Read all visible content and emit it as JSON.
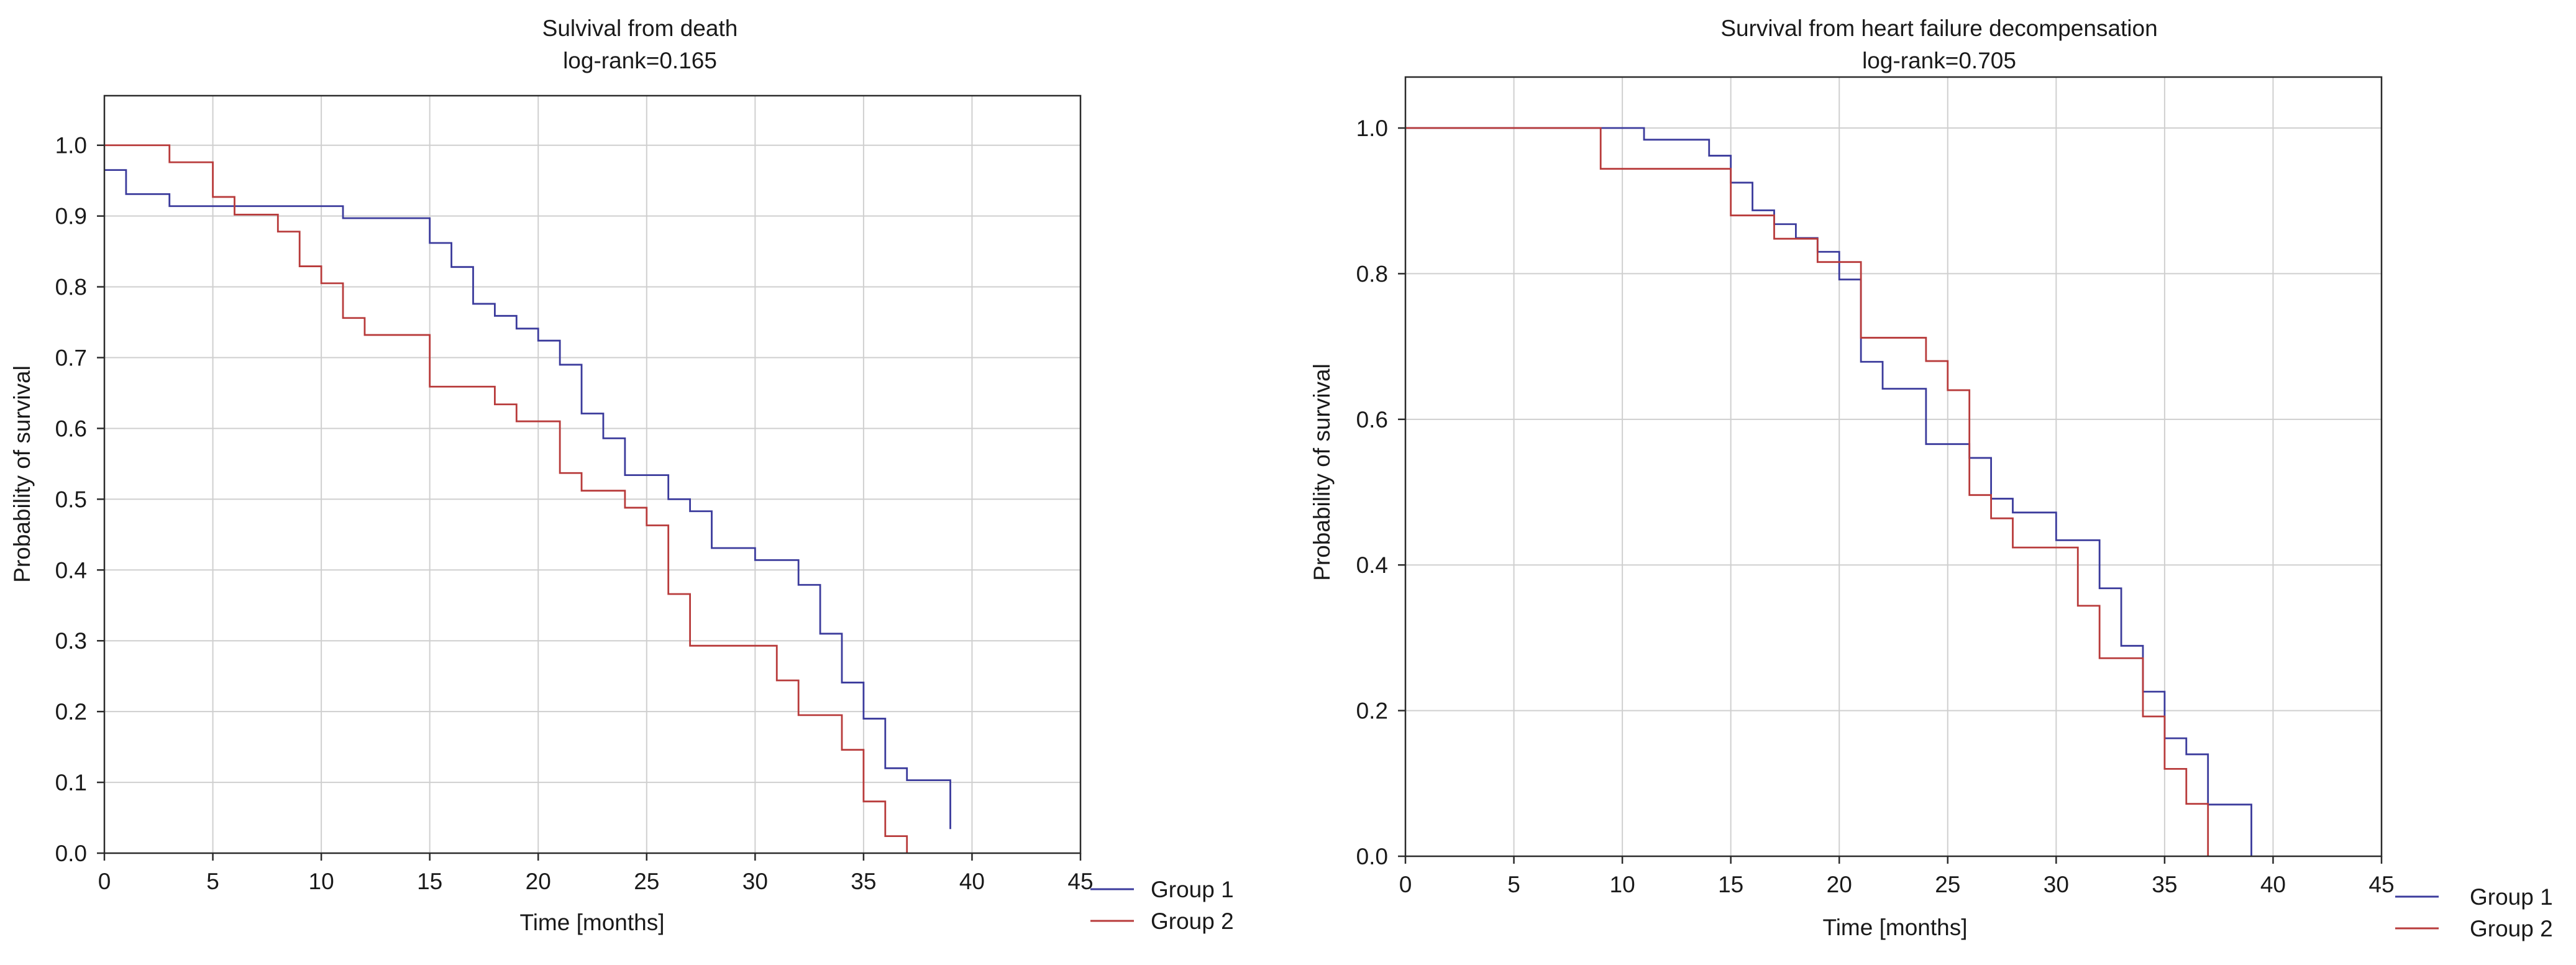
{
  "chart_data": [
    {
      "type": "line",
      "step": true,
      "title": "Sulvival from death",
      "subtitle": "log-rank=0.165",
      "xlabel": "Time [months]",
      "ylabel": "Probability of survival",
      "xlim": [
        0,
        45
      ],
      "ylim": [
        0,
        1.07
      ],
      "xticks": [
        0,
        5,
        10,
        15,
        20,
        25,
        30,
        35,
        40,
        45
      ],
      "xtick_labels": [
        "0",
        "5",
        "10",
        "15",
        "20",
        "25",
        "30",
        "35",
        "40",
        "45"
      ],
      "yticks": [
        0,
        0.1,
        0.2,
        0.3,
        0.4,
        0.5,
        0.6,
        0.7,
        0.8,
        0.9,
        1.0
      ],
      "ytick_labels": [
        "0.0",
        "0.1",
        "0.2",
        "0.3",
        "0.4",
        "0.5",
        "0.6",
        "0.7",
        "0.8",
        "0.9",
        "1.0"
      ],
      "grid": true,
      "legend_position": "bottom-right-outside",
      "series": [
        {
          "name": "Group 1",
          "color": "#3b3b9c",
          "x": [
            0,
            1,
            3,
            11,
            14,
            15,
            16,
            17,
            18,
            19,
            20,
            21,
            22,
            23,
            24,
            26,
            27,
            28,
            30,
            32,
            33,
            34,
            35,
            36,
            37,
            39
          ],
          "y": [
            0.965,
            0.931,
            0.914,
            0.897,
            0.897,
            0.862,
            0.828,
            0.776,
            0.759,
            0.741,
            0.724,
            0.69,
            0.621,
            0.586,
            0.534,
            0.5,
            0.483,
            0.431,
            0.414,
            0.379,
            0.31,
            0.241,
            0.19,
            0.12,
            0.103,
            0.034
          ]
        },
        {
          "name": "Group 2",
          "color": "#b83b3b",
          "x": [
            0,
            3,
            5,
            6,
            8,
            9,
            10,
            11,
            12,
            15,
            18,
            19,
            21,
            22,
            24,
            25,
            26,
            27,
            31,
            32,
            34,
            35,
            36,
            37
          ],
          "y": [
            1.0,
            0.976,
            0.927,
            0.902,
            0.878,
            0.829,
            0.805,
            0.756,
            0.732,
            0.659,
            0.634,
            0.61,
            0.537,
            0.512,
            0.488,
            0.463,
            0.366,
            0.293,
            0.244,
            0.195,
            0.146,
            0.073,
            0.024,
            0.0
          ]
        }
      ]
    },
    {
      "type": "line",
      "step": true,
      "title": "Survival from heart failure decompensation",
      "subtitle": "log-rank=0.705",
      "xlabel": "Time [months]",
      "ylabel": "Probability of survival",
      "xlim": [
        0,
        45
      ],
      "ylim": [
        0,
        1.07
      ],
      "xticks": [
        0,
        5,
        10,
        15,
        20,
        25,
        30,
        35,
        40,
        45
      ],
      "xtick_labels": [
        "0",
        "5",
        "10",
        "15",
        "20",
        "25",
        "30",
        "35",
        "40",
        "45"
      ],
      "yticks": [
        0,
        0.2,
        0.4,
        0.6,
        0.8,
        1.0
      ],
      "ytick_labels": [
        "0.0",
        "0.2",
        "0.4",
        "0.6",
        "0.8",
        "1.0"
      ],
      "grid": true,
      "legend_position": "bottom-right-outside",
      "series": [
        {
          "name": "Group 1",
          "color": "#3b3b9c",
          "x": [
            0,
            11,
            14,
            15,
            16,
            17,
            18,
            19,
            20,
            21,
            22,
            24,
            26,
            27,
            28,
            30,
            32,
            33,
            34,
            35,
            36,
            37,
            39
          ],
          "y": [
            1.0,
            0.984,
            0.962,
            0.925,
            0.887,
            0.868,
            0.849,
            0.83,
            0.792,
            0.679,
            0.642,
            0.566,
            0.547,
            0.491,
            0.472,
            0.434,
            0.368,
            0.289,
            0.226,
            0.162,
            0.14,
            0.071,
            0.0
          ]
        },
        {
          "name": "Group 2",
          "color": "#b83b3b",
          "x": [
            0,
            9,
            15,
            17,
            19,
            20,
            21,
            24,
            25,
            26,
            27,
            28,
            31,
            32,
            34,
            35,
            36,
            37
          ],
          "y": [
            1.0,
            0.944,
            0.88,
            0.848,
            0.816,
            0.816,
            0.712,
            0.68,
            0.64,
            0.496,
            0.464,
            0.424,
            0.344,
            0.272,
            0.192,
            0.12,
            0.072,
            0.0
          ]
        }
      ]
    }
  ]
}
